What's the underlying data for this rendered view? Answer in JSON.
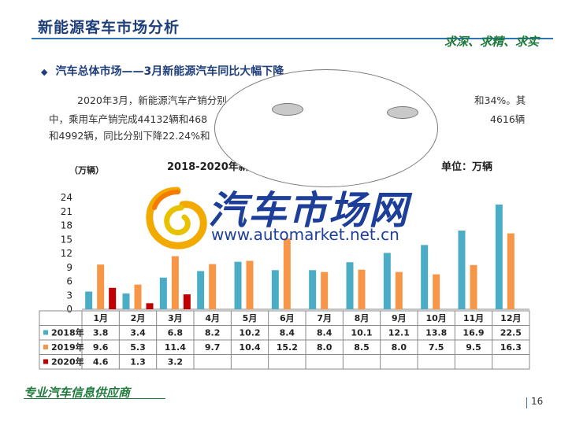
{
  "page": {
    "title": "新能源客车市场分析",
    "slogan": "求深、求精、求实",
    "subtitle": "汽车总体市场——3月新能源汽车同比大幅下降",
    "paragraph_lines": [
      "2020年3月，新能源汽车产销分别",
      "中，乘用车产销完成44132辆和468",
      "和4992辆，同比分别下降22.24%和"
    ],
    "paragraph_right": [
      "和34%。其",
      "4616辆"
    ],
    "chart_title": "2018-2020年新",
    "chart_unit_right": "单位：万辆",
    "y_unit": "（万辆）",
    "footer": "专业汽车信息供应商",
    "page_number": "16"
  },
  "watermark": {
    "brand_cn": "汽车市场网",
    "url": "www.automarket.net.cn"
  },
  "chart_data": {
    "type": "bar",
    "categories": [
      "1月",
      "2月",
      "3月",
      "4月",
      "5月",
      "6月",
      "7月",
      "8月",
      "9月",
      "10月",
      "11月",
      "12月"
    ],
    "series": [
      {
        "name": "2018年",
        "color": "#4bacc6",
        "values": [
          3.8,
          3.4,
          6.8,
          8.2,
          10.2,
          8.4,
          8.4,
          10.1,
          12.1,
          13.8,
          16.9,
          22.5
        ]
      },
      {
        "name": "2019年",
        "color": "#f79646",
        "values": [
          9.6,
          5.3,
          11.4,
          9.7,
          10.4,
          15.2,
          8.0,
          8.5,
          8.0,
          7.5,
          9.5,
          16.3
        ]
      },
      {
        "name": "2020年",
        "color": "#c00000",
        "values": [
          4.6,
          1.3,
          3.2,
          null,
          null,
          null,
          null,
          null,
          null,
          null,
          null,
          null
        ]
      }
    ],
    "ylim": [
      0,
      24
    ],
    "yticks": [
      0,
      3,
      6,
      9,
      12,
      15,
      18,
      21,
      24
    ],
    "legend": "data-table-rows"
  }
}
